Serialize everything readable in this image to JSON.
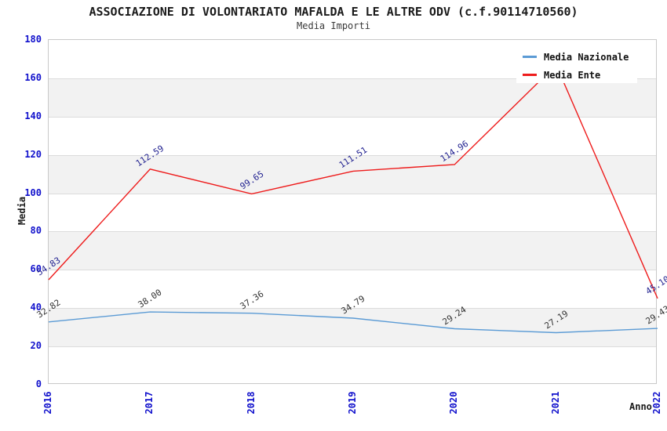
{
  "title": "ASSOCIAZIONE DI VOLONTARIATO MAFALDA E LE ALTRE ODV (c.f.90114710560)",
  "subtitle": "Media Importi",
  "colors": {
    "tick_label": "#1111cc",
    "band_gray": "#f2f2f2",
    "gridline": "#dcdcdc",
    "plot_border": "#c9c9c9",
    "national_line": "#5b9bd5",
    "entity_line": "#ee1c1c",
    "national_point_label": "#333333",
    "entity_point_label": "#1f1f8f"
  },
  "chart_data": {
    "type": "line",
    "x": [
      "2016",
      "2017",
      "2018",
      "2019",
      "2020",
      "2021",
      "2022"
    ],
    "xlabel": "Anno",
    "ylabel": "Media",
    "ylim": [
      0,
      180
    ],
    "ytick_step": 20,
    "grid": "alternating-horizontal-bands",
    "legend_position": "top-right-inside",
    "series": [
      {
        "name": "Media Nazionale",
        "color": "#5b9bd5",
        "label_color": "#333333",
        "values": [
          32.82,
          38.0,
          37.36,
          34.79,
          29.24,
          27.19,
          29.43
        ],
        "point_labels": [
          "32.82",
          "38.00",
          "37.36",
          "34.79",
          "29.24",
          "27.19",
          "29.43"
        ]
      },
      {
        "name": "Media Ente",
        "color": "#ee1c1c",
        "label_color": "#1f1f8f",
        "values": [
          54.83,
          112.59,
          99.65,
          111.51,
          114.96,
          167.0,
          45.1
        ],
        "point_labels": [
          "54.83",
          "112.59",
          "99.65",
          "111.51",
          "114.96",
          "",
          "45.10"
        ]
      }
    ]
  }
}
